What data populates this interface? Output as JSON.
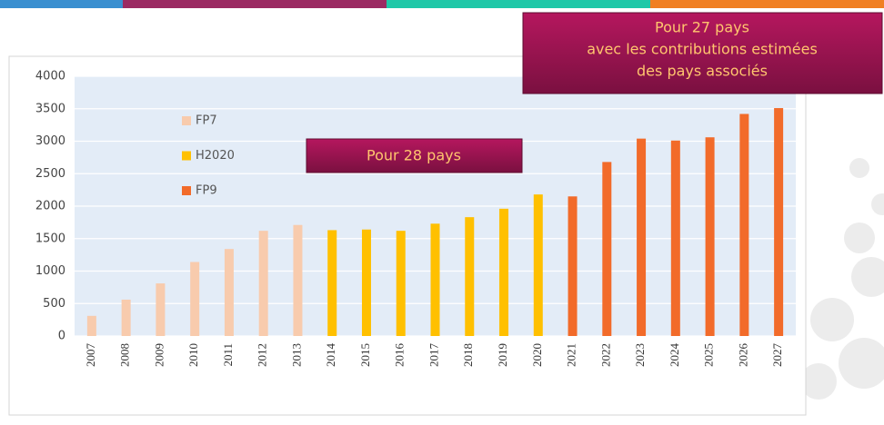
{
  "chart_data": {
    "type": "bar",
    "categories": [
      "2007",
      "2008",
      "2009",
      "2010",
      "2011",
      "2012",
      "2013",
      "2014",
      "2015",
      "2016",
      "2017",
      "2018",
      "2019",
      "2020",
      "2021",
      "2022",
      "2023",
      "2024",
      "2025",
      "2026",
      "2027"
    ],
    "series": [
      {
        "name": "FP7",
        "color": "#f8cbad",
        "values": [
          310,
          560,
          810,
          1140,
          1340,
          1620,
          1710,
          null,
          null,
          null,
          null,
          null,
          null,
          null,
          null,
          null,
          null,
          null,
          null,
          null,
          null
        ]
      },
      {
        "name": "H2020",
        "color": "#ffc000",
        "values": [
          null,
          null,
          null,
          null,
          null,
          null,
          null,
          1630,
          1640,
          1620,
          1730,
          1830,
          1960,
          2180,
          null,
          null,
          null,
          null,
          null,
          null,
          null
        ]
      },
      {
        "name": "FP9",
        "color": "#f26b2a",
        "values": [
          null,
          null,
          null,
          null,
          null,
          null,
          null,
          null,
          null,
          null,
          null,
          null,
          null,
          null,
          2150,
          2680,
          3040,
          3010,
          3060,
          3420,
          3510
        ]
      }
    ],
    "ylim": [
      0,
      4000
    ],
    "yticks": [
      0,
      500,
      1000,
      1500,
      2000,
      2500,
      3000,
      3500,
      4000
    ],
    "grid": true,
    "annotations": [
      {
        "lines": [
          "Pour 27  pays",
          "avec les contributions estimées",
          "des pays associés"
        ]
      },
      {
        "lines": [
          "Pour 28 pays"
        ]
      }
    ]
  }
}
